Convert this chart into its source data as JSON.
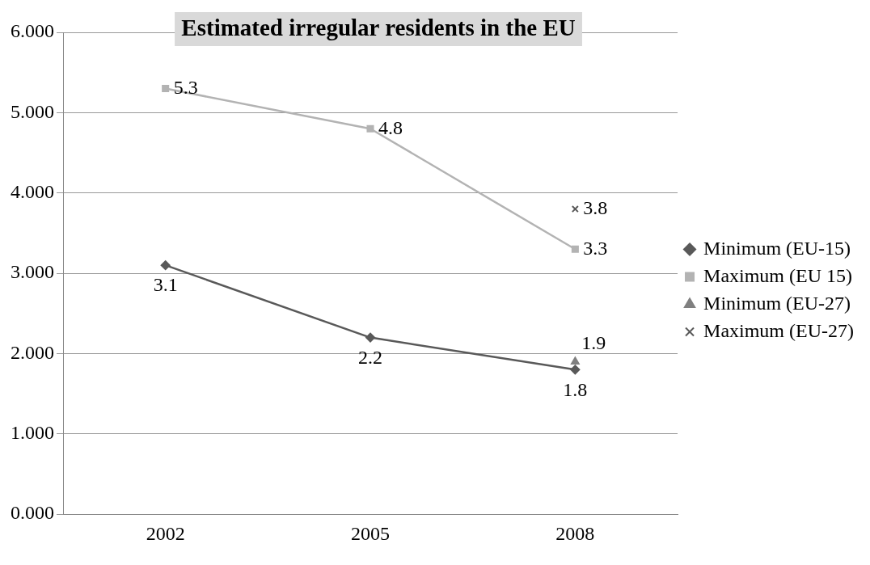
{
  "chart_data": {
    "type": "line",
    "title": "Estimated irregular residents in the EU",
    "categories": [
      "2002",
      "2005",
      "2008"
    ],
    "series": [
      {
        "name": "Minimum (EU-15)",
        "color": "#595959",
        "marker": "diamond",
        "values": [
          3.1,
          2.2,
          1.8
        ]
      },
      {
        "name": "Maximum (EU 15)",
        "color": "#b3b3b3",
        "marker": "square",
        "values": [
          5.3,
          4.8,
          3.3
        ]
      },
      {
        "name": "Minimum (EU-27)",
        "color": "#808080",
        "marker": "triangle",
        "values": [
          null,
          null,
          1.9
        ]
      },
      {
        "name": "Maximum (EU-27)",
        "color": "#595959",
        "marker": "cross",
        "values": [
          null,
          null,
          3.8
        ]
      }
    ],
    "ylim": [
      0,
      6
    ],
    "yticks": [
      {
        "value": 0,
        "label": "0.000"
      },
      {
        "value": 1,
        "label": "1.000"
      },
      {
        "value": 2,
        "label": "2.000"
      },
      {
        "value": 3,
        "label": "3.000"
      },
      {
        "value": 4,
        "label": "4.000"
      },
      {
        "value": 5,
        "label": "5.000"
      },
      {
        "value": 6,
        "label": "6.000"
      }
    ],
    "grid": "y",
    "legend": "right",
    "data_labels": true
  }
}
